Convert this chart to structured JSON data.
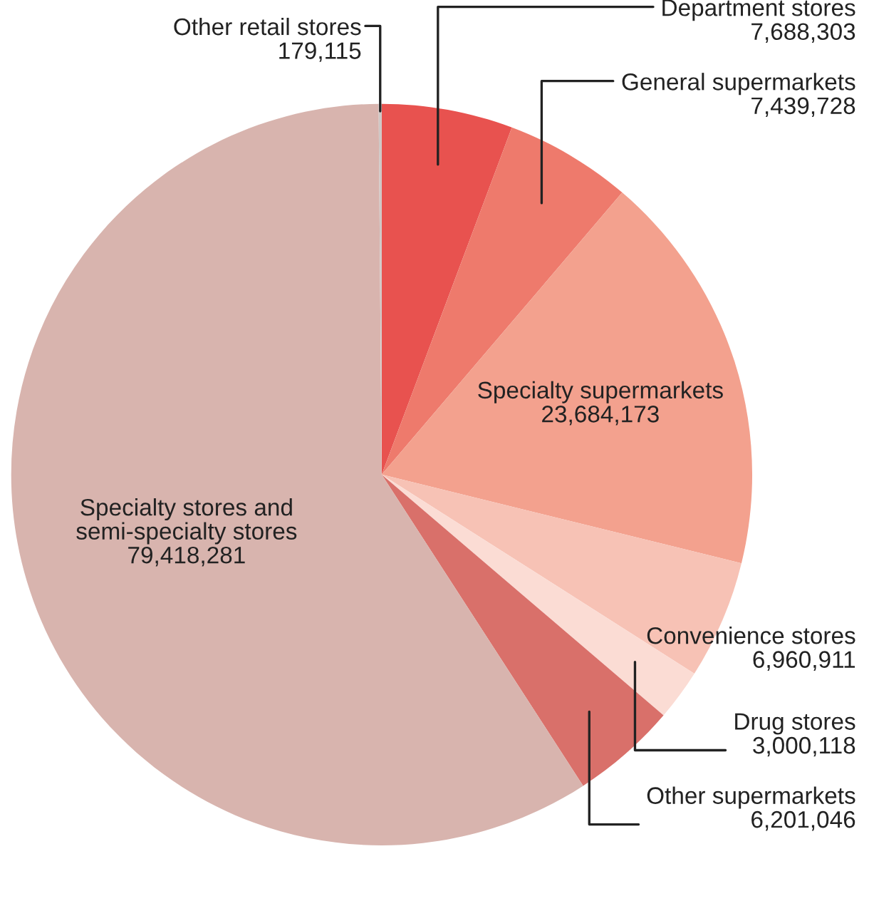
{
  "chart_data": {
    "type": "pie",
    "categories": [
      "Department stores",
      "General supermarkets",
      "Specialty supermarkets",
      "Convenience stores",
      "Drug stores",
      "Other supermarkets",
      "Specialty stores and\nsemi-specialty stores",
      "Other retail stores"
    ],
    "values": [
      7688303,
      7439728,
      23684173,
      6960911,
      3000118,
      6201046,
      79418281,
      179115
    ],
    "value_labels": [
      "7,688,303",
      "7,439,728",
      "23,684,173",
      "6,960,911",
      "3,000,118",
      "6,201,046",
      "79,418,281",
      "179,115"
    ],
    "colors": [
      "#e8524f",
      "#ee7a6c",
      "#f3a18e",
      "#f7c2b5",
      "#fbdcd4",
      "#d9706a",
      "#d8b4ae",
      "#cfc8c6"
    ]
  }
}
